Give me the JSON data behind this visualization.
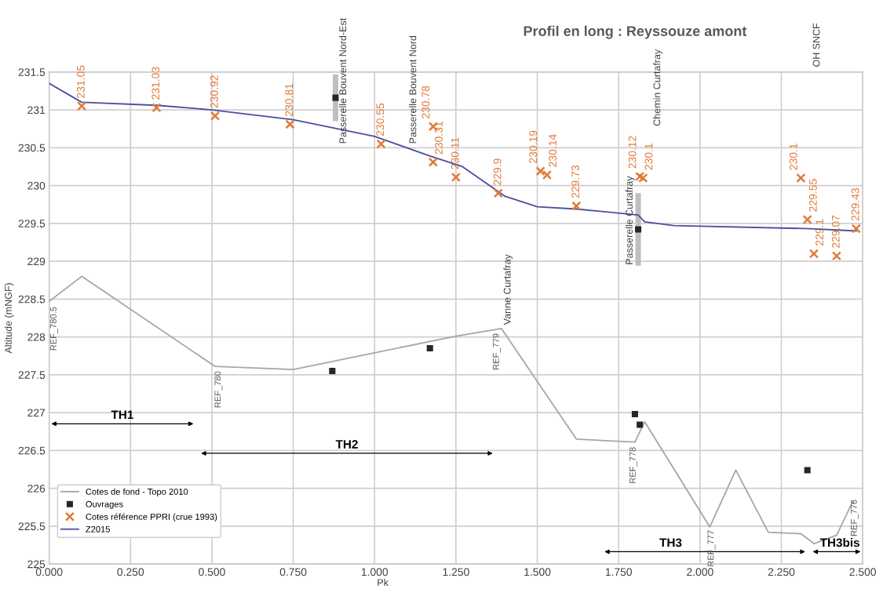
{
  "chart_data": {
    "type": "line",
    "title": "Profil en long : Reyssouze amont",
    "xlabel": "Pk",
    "ylabel": "Altitude (mNGF)",
    "xlim": [
      0,
      2.5
    ],
    "xticks": [
      {
        "value": 0,
        "label": "0.000"
      },
      {
        "value": 0.25,
        "label": "0.250"
      },
      {
        "value": 0.5,
        "label": "0.500"
      },
      {
        "value": 0.75,
        "label": "0.750"
      },
      {
        "value": 1,
        "label": "1.000"
      },
      {
        "value": 1.25,
        "label": "1.250"
      },
      {
        "value": 1.5,
        "label": "1.500"
      },
      {
        "value": 1.75,
        "label": "1.750"
      },
      {
        "value": 2,
        "label": "2.000"
      },
      {
        "value": 2.25,
        "label": "2.250"
      },
      {
        "value": 2.5,
        "label": "2.500"
      }
    ],
    "ylim": [
      225,
      231.5
    ],
    "yticks": [
      225,
      225.5,
      226,
      226.5,
      227,
      227.5,
      228,
      228.5,
      229,
      229.5,
      230,
      230.5,
      231,
      231.5
    ],
    "grid": true,
    "legend": "bottom left",
    "series": [
      {
        "name": "Cotes de fond - Topo 2010",
        "color": "#a6a6a6",
        "marker": "none",
        "x": [
          0,
          0.1,
          0.51,
          0.75,
          1.25,
          1.39,
          1.62,
          1.8,
          1.83,
          2.03,
          2.11,
          2.21,
          2.31,
          2.35,
          2.42,
          2.47
        ],
        "values": [
          228.47,
          228.8,
          227.61,
          227.57,
          228.01,
          228.11,
          226.65,
          226.61,
          226.88,
          225.49,
          226.24,
          225.42,
          225.4,
          225.27,
          225.38,
          225.83
        ]
      },
      {
        "name": "Ouvrages",
        "type": "scatter",
        "color": "#262626",
        "marker": "square",
        "x": [
          0.87,
          1.17,
          1.8,
          1.815,
          2.33,
          0.88,
          1.81
        ],
        "values": [
          227.55,
          227.85,
          226.98,
          226.84,
          226.24,
          231.16,
          229.42
        ],
        "errors": [
          null,
          null,
          null,
          null,
          null,
          0.31,
          0.48
        ]
      },
      {
        "name": "Cotes référence PPRI (crue 1993)",
        "type": "scatter",
        "color": "#e07b39",
        "marker": "cross",
        "data_labels": true,
        "x": [
          0.1,
          0.33,
          0.51,
          0.74,
          1.02,
          1.18,
          1.18,
          1.25,
          1.38,
          1.51,
          1.53,
          1.62,
          1.815,
          1.825,
          2.31,
          2.33,
          2.35,
          2.42,
          2.48
        ],
        "values": [
          231.05,
          231.03,
          230.92,
          230.81,
          230.55,
          230.78,
          230.31,
          230.11,
          229.9,
          230.19,
          230.14,
          229.73,
          230.12,
          230.1,
          230.1,
          229.55,
          229.1,
          229.07,
          229.43
        ]
      },
      {
        "name": "Z2015",
        "color": "#4a4fa0",
        "marker": "none",
        "x": [
          0,
          0.1,
          0.33,
          0.5,
          0.75,
          1.0,
          1.17,
          1.27,
          1.4,
          1.5,
          1.62,
          1.81,
          1.83,
          1.92,
          2.34,
          2.48
        ],
        "values": [
          231.35,
          231.1,
          231.06,
          231.0,
          230.87,
          230.65,
          230.39,
          230.25,
          229.86,
          229.72,
          229.69,
          229.61,
          229.52,
          229.47,
          229.43,
          229.4
        ]
      }
    ],
    "annotations": [
      "Passerelle Bouvent Nord-Est",
      "Passerelle Bouvent Nord",
      "Vanne Curtafray",
      "Passerelle Curtafray",
      "Chemin Curtafray",
      "OH SNCF",
      "REF_780.5",
      "REF_780",
      "REF_779",
      "REF_778",
      "REF_777",
      "REF_776",
      "TH1",
      "TH2",
      "TH3",
      "TH3bis"
    ]
  }
}
